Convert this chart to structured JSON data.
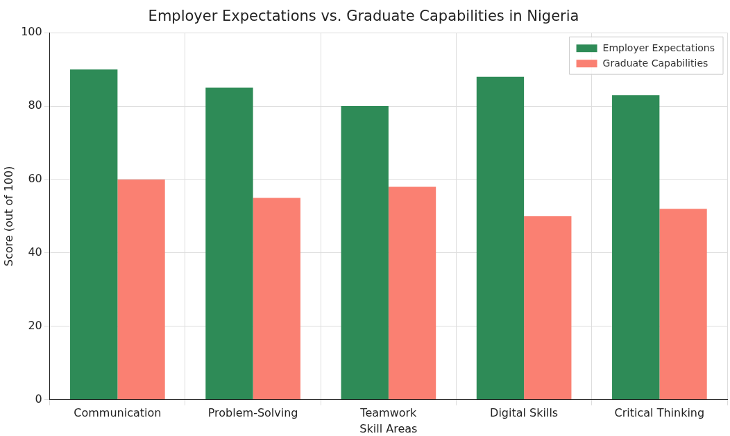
{
  "chart_data": {
    "type": "bar",
    "title": "Employer Expectations vs. Graduate Capabilities in Nigeria",
    "xlabel": "Skill Areas",
    "ylabel": "Score (out of 100)",
    "categories": [
      "Communication",
      "Problem-Solving",
      "Teamwork",
      "Digital Skills",
      "Critical Thinking"
    ],
    "series": [
      {
        "name": "Employer Expectations",
        "color": "#2e8b57",
        "values": [
          90,
          85,
          80,
          88,
          83
        ]
      },
      {
        "name": "Graduate Capabilities",
        "color": "#fa8072",
        "values": [
          60,
          55,
          58,
          50,
          52
        ]
      }
    ],
    "ylim": [
      0,
      100
    ],
    "yticks": [
      0,
      20,
      40,
      60,
      80,
      100
    ],
    "grid": true,
    "legend": "top right"
  }
}
